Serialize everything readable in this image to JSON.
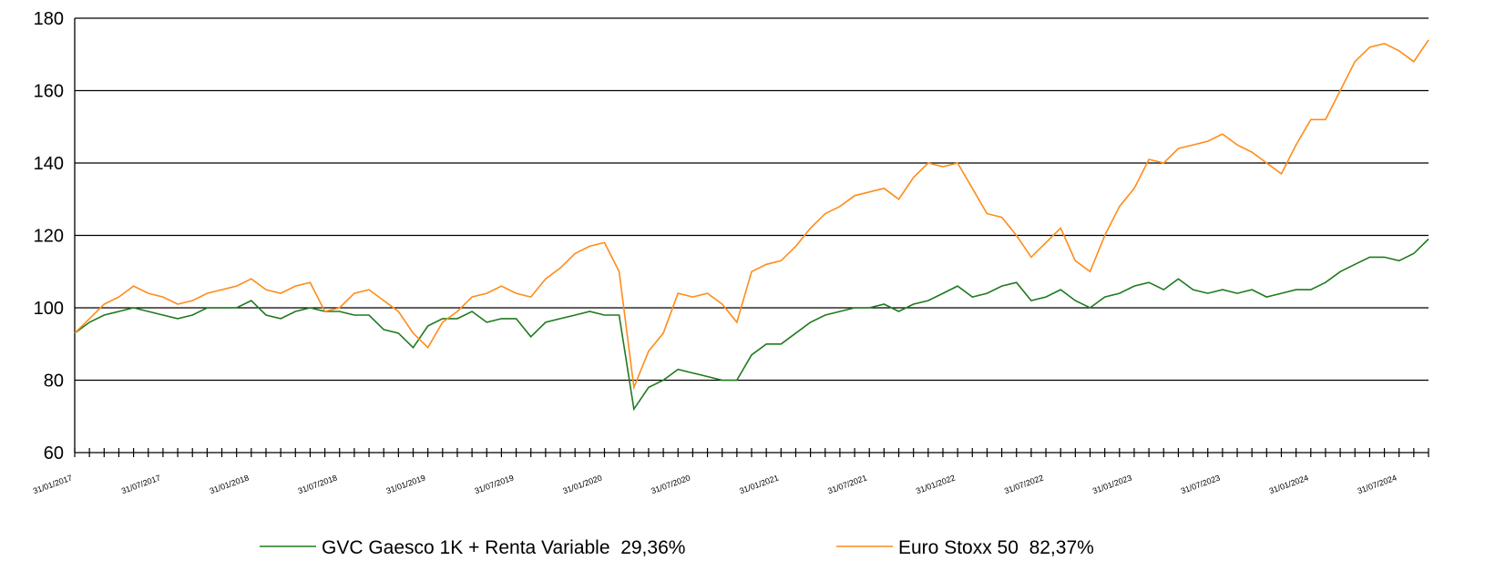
{
  "chart_data": {
    "type": "line",
    "categories": [
      "31/01/2017",
      null,
      null,
      null,
      null,
      null,
      "31/07/2017",
      null,
      null,
      null,
      null,
      null,
      "31/01/2018",
      null,
      null,
      null,
      null,
      null,
      "31/07/2018",
      null,
      null,
      null,
      null,
      null,
      "31/01/2019",
      null,
      null,
      null,
      null,
      null,
      "31/07/2019",
      null,
      null,
      null,
      null,
      null,
      "31/01/2020",
      null,
      null,
      null,
      null,
      null,
      "31/07/2020",
      null,
      null,
      null,
      null,
      null,
      "31/01/2021",
      null,
      null,
      null,
      null,
      null,
      "31/07/2021",
      null,
      null,
      null,
      null,
      null,
      "31/01/2022",
      null,
      null,
      null,
      null,
      null,
      "31/07/2022",
      null,
      null,
      null,
      null,
      null,
      "31/01/2023",
      null,
      null,
      null,
      null,
      null,
      "31/07/2023",
      null,
      null,
      null,
      null,
      null,
      "31/01/2024",
      null,
      null,
      null,
      null,
      null,
      "31/07/2024",
      null,
      null
    ],
    "series": [
      {
        "name": "GVC Gaesco 1K + Renta Variable  29,36%",
        "color": "#1e7a1e",
        "values": [
          93,
          96,
          98,
          99,
          100,
          99,
          98,
          97,
          98,
          100,
          100,
          100,
          102,
          98,
          97,
          99,
          100,
          99,
          99,
          98,
          98,
          94,
          93,
          89,
          95,
          97,
          97,
          99,
          96,
          97,
          97,
          92,
          96,
          97,
          98,
          99,
          98,
          98,
          72,
          78,
          80,
          83,
          82,
          81,
          80,
          80,
          87,
          90,
          90,
          93,
          96,
          98,
          99,
          100,
          100,
          101,
          99,
          101,
          102,
          104,
          106,
          103,
          104,
          106,
          107,
          102,
          103,
          105,
          102,
          100,
          103,
          104,
          106,
          107,
          105,
          108,
          105,
          104,
          105,
          104,
          105,
          103,
          104,
          105,
          105,
          107,
          110,
          112,
          114,
          114,
          113,
          115,
          119
        ]
      },
      {
        "name": "Euro Stoxx 50  82,37%",
        "color": "#ff8c1a",
        "values": [
          93,
          97,
          101,
          103,
          106,
          104,
          103,
          101,
          102,
          104,
          105,
          106,
          108,
          105,
          104,
          106,
          107,
          99,
          100,
          104,
          105,
          102,
          99,
          93,
          89,
          96,
          99,
          103,
          104,
          106,
          104,
          103,
          108,
          111,
          115,
          117,
          118,
          110,
          78,
          88,
          93,
          104,
          103,
          104,
          101,
          96,
          110,
          112,
          113,
          117,
          122,
          126,
          128,
          131,
          132,
          133,
          130,
          136,
          140,
          139,
          140,
          133,
          126,
          125,
          120,
          114,
          118,
          122,
          113,
          110,
          120,
          128,
          133,
          141,
          140,
          144,
          145,
          146,
          148,
          145,
          143,
          140,
          137,
          145,
          152,
          152,
          160,
          168,
          172,
          173,
          171,
          168,
          174
        ]
      }
    ],
    "ylim": [
      60,
      180
    ],
    "yticks": [
      60,
      80,
      100,
      120,
      140,
      160,
      180
    ],
    "grid": true
  }
}
